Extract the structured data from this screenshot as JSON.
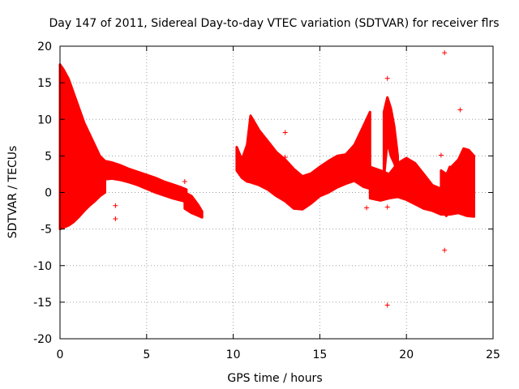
{
  "chart_data": {
    "type": "scatter",
    "title": "Day 147 of 2011, Sidereal Day-to-day VTEC variation (SDTVAR) for receiver flrs",
    "xlabel": "GPS time / hours",
    "ylabel": "SDTVAR / TECUs",
    "xlim": [
      0,
      25
    ],
    "ylim": [
      -20,
      20
    ],
    "xticks": [
      0,
      5,
      10,
      15,
      20,
      25
    ],
    "yticks": [
      -20,
      -15,
      -10,
      -5,
      0,
      5,
      10,
      15,
      20
    ],
    "xtick_labels": [
      "0",
      "5",
      "10",
      "15",
      "20",
      "25"
    ],
    "ytick_labels": [
      "-20",
      "-15",
      "-10",
      "-5",
      "0",
      "5",
      "10",
      "15",
      "20"
    ],
    "grid": true,
    "marker": "+",
    "series_color": "#ff0000",
    "bands": [
      {
        "x": [
          0.0,
          0.2,
          0.5,
          0.8,
          1.1,
          1.4,
          1.7,
          2.0,
          2.3,
          2.6
        ],
        "upper": [
          17.5,
          16.8,
          15.5,
          13.5,
          11.5,
          9.5,
          8.0,
          6.5,
          5.0,
          4.3
        ],
        "lower": [
          -5.0,
          -4.8,
          -4.5,
          -4.0,
          -3.3,
          -2.5,
          -1.8,
          -1.2,
          -0.5,
          0.0
        ]
      },
      {
        "x": [
          2.6,
          3.0,
          3.5,
          4.0,
          4.5,
          5.0,
          5.5,
          6.0,
          6.5,
          7.0,
          7.3
        ],
        "upper": [
          4.3,
          4.1,
          3.7,
          3.2,
          2.8,
          2.4,
          2.0,
          1.5,
          1.1,
          0.7,
          0.4
        ],
        "lower": [
          1.8,
          1.9,
          1.7,
          1.4,
          1.0,
          0.5,
          0.0,
          -0.4,
          -0.8,
          -1.1,
          -1.3
        ]
      },
      {
        "x": [
          7.2,
          7.6,
          8.0,
          8.2
        ],
        "upper": [
          0.0,
          -0.5,
          -1.8,
          -2.6
        ],
        "lower": [
          -2.2,
          -2.8,
          -3.2,
          -3.4
        ]
      },
      {
        "x": [
          10.2,
          10.5,
          10.8,
          11.0,
          11.5,
          12.0,
          12.5,
          13.0,
          13.5,
          14.0,
          14.5,
          15.0,
          15.5,
          16.0,
          16.5,
          17.0,
          17.5,
          17.9
        ],
        "upper": [
          6.2,
          4.5,
          6.5,
          10.5,
          8.5,
          7.0,
          5.5,
          4.5,
          3.2,
          2.2,
          2.6,
          3.5,
          4.3,
          5.0,
          5.2,
          6.5,
          9.0,
          11.0
        ],
        "lower": [
          3.0,
          2.0,
          1.5,
          1.4,
          1.0,
          0.4,
          -0.5,
          -1.2,
          -2.2,
          -2.3,
          -1.5,
          -0.5,
          0.0,
          0.7,
          1.2,
          1.6,
          0.8,
          0.5
        ]
      },
      {
        "x": [
          17.9,
          18.5,
          19.0,
          19.5,
          20.0,
          20.5,
          21.0,
          21.5,
          22.0,
          22.5,
          23.0,
          23.5,
          23.9
        ],
        "upper": [
          3.5,
          3.0,
          2.5,
          4.0,
          4.7,
          4.0,
          2.5,
          1.0,
          0.5,
          3.5,
          2.5,
          5.2,
          5.0
        ],
        "lower": [
          -0.8,
          -1.1,
          -0.8,
          -0.6,
          -1.0,
          -1.6,
          -2.2,
          -2.5,
          -3.0,
          -3.0,
          -2.8,
          -3.2,
          -3.3
        ]
      },
      {
        "x": [
          18.7,
          18.9,
          19.1,
          19.3,
          19.5
        ],
        "upper": [
          11.0,
          13.0,
          11.5,
          9.0,
          5.0
        ],
        "lower": [
          2.0,
          7.0,
          5.0,
          4.0,
          2.5
        ]
      },
      {
        "x": [
          22.0,
          22.3,
          22.6,
          23.0,
          23.3,
          23.6,
          23.9
        ],
        "upper": [
          3.0,
          2.5,
          3.5,
          4.5,
          6.0,
          5.8,
          5.0
        ],
        "lower": [
          -2.0,
          -3.2,
          -2.5,
          -2.0,
          -0.5,
          1.0,
          2.0
        ]
      }
    ],
    "outliers": [
      {
        "x": 3.2,
        "y": -3.6
      },
      {
        "x": 3.2,
        "y": -1.8
      },
      {
        "x": 7.2,
        "y": 1.5
      },
      {
        "x": 13.0,
        "y": 8.2
      },
      {
        "x": 13.0,
        "y": 4.8
      },
      {
        "x": 17.7,
        "y": -2.1
      },
      {
        "x": 18.9,
        "y": 15.6
      },
      {
        "x": 18.9,
        "y": -2.0
      },
      {
        "x": 18.9,
        "y": -15.4
      },
      {
        "x": 22.0,
        "y": 5.1
      },
      {
        "x": 22.2,
        "y": -7.9
      },
      {
        "x": 22.2,
        "y": 19.1
      },
      {
        "x": 23.1,
        "y": 11.3
      }
    ]
  }
}
